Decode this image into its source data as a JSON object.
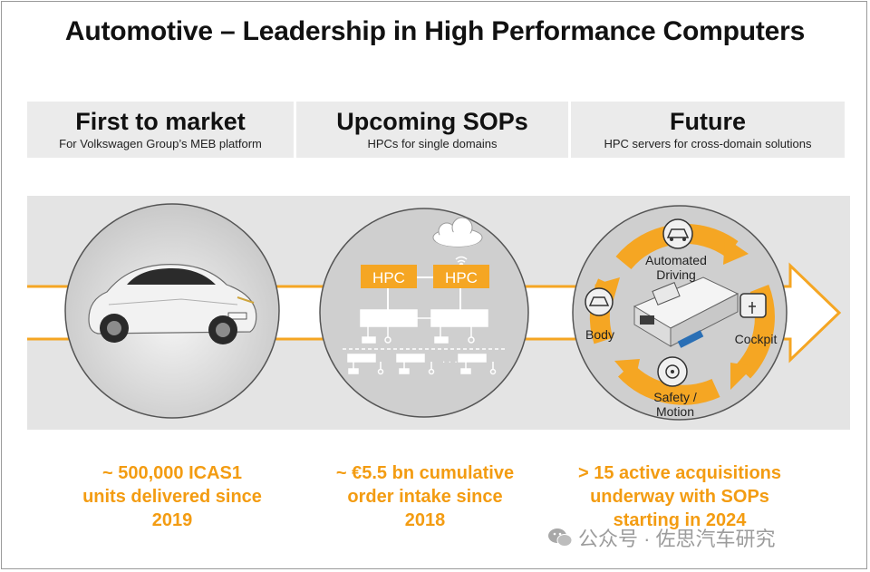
{
  "title": "Automotive – Leadership in High Performance Computers",
  "columns": [
    {
      "heading": "First to market",
      "subheading": "For Volkswagen Group’s MEB platform"
    },
    {
      "heading": "Upcoming SOPs",
      "subheading": "HPCs for single domains"
    },
    {
      "heading": "Future",
      "subheading": "HPC servers for cross-domain solutions"
    }
  ],
  "middle": {
    "hpc_left": "HPC",
    "hpc_right": "HPC"
  },
  "right_circle": {
    "automated": [
      "Automated",
      "Driving"
    ],
    "body": "Body",
    "cockpit": "Cockpit",
    "safety": [
      "Safety /",
      "Motion"
    ]
  },
  "stats": [
    {
      "lines": [
        "~ 500,000 ICAS1",
        "units delivered since",
        "2019"
      ]
    },
    {
      "lines": [
        "~ €5.5 bn cumulative",
        "order intake since",
        "2018"
      ]
    },
    {
      "lines": [
        "> 15 active acquisitions",
        "underway with SOPs",
        "starting in 2024"
      ]
    }
  ],
  "watermark": "公众号 · 佐思汽车研究",
  "colors": {
    "accent": "#f5a623",
    "band": "#e4e4e4",
    "header": "#ebebeb",
    "circle": "#cfcfcf"
  }
}
